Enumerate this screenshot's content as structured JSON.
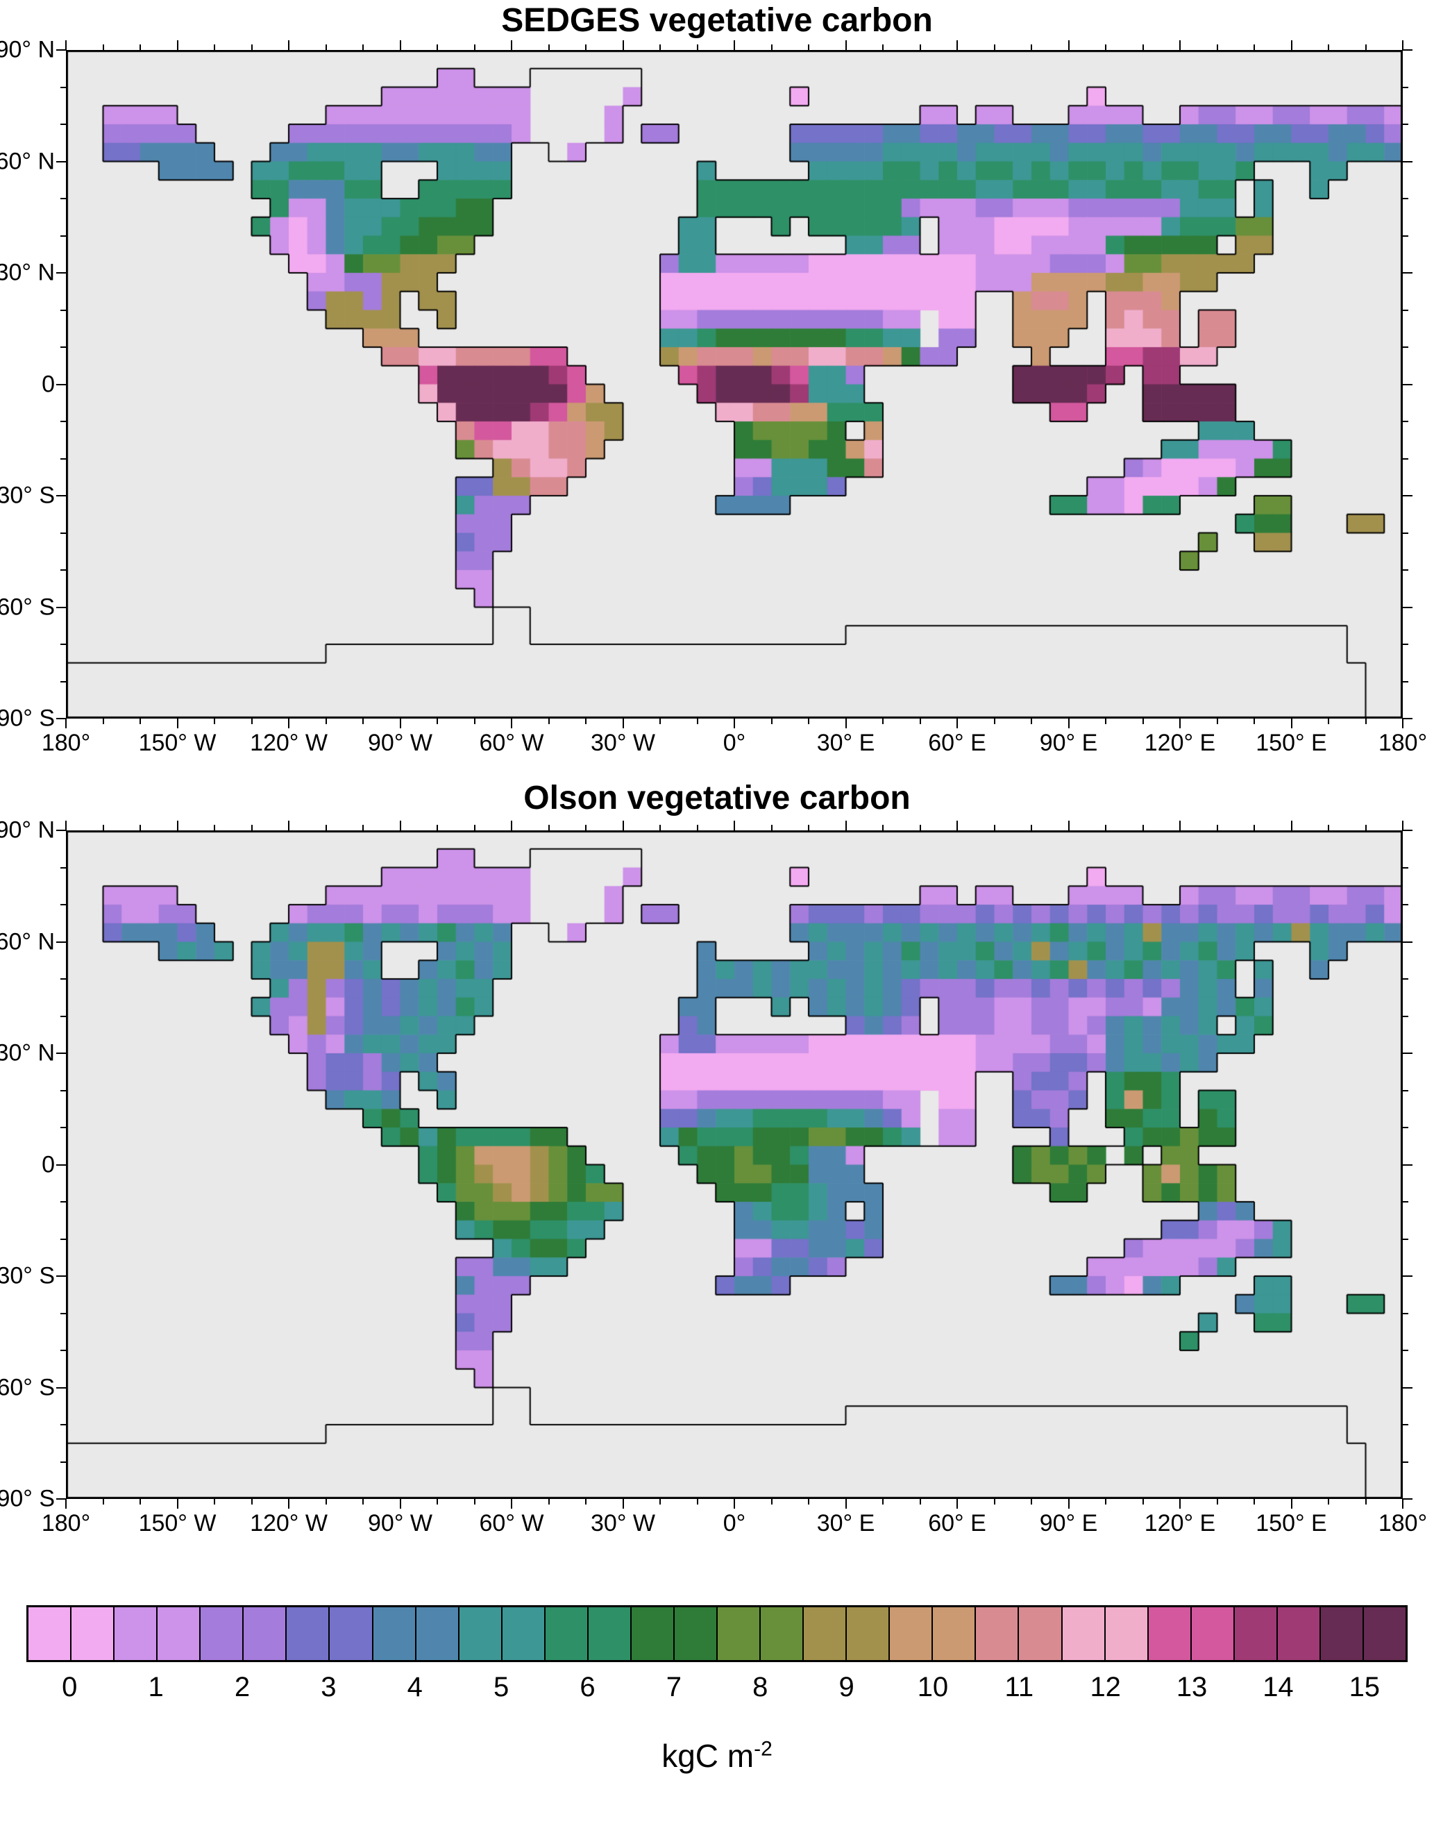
{
  "figure": {
    "background": "#ffffff",
    "panels": [
      {
        "title": "SEDGES vegetative carbon"
      },
      {
        "title": "Olson vegetative carbon"
      }
    ],
    "axes": {
      "lon_tick_labels": [
        "180°",
        "150° W",
        "120° W",
        "90° W",
        "60° W",
        "30° W",
        "0°",
        "30° E",
        "60° E",
        "90° E",
        "120° E",
        "150° E",
        "180°"
      ],
      "lat_tick_labels": [
        "90° N",
        "60° N",
        "30° N",
        "0",
        "30° S",
        "60° S",
        "90° S"
      ]
    },
    "colorbar": {
      "tick_labels": [
        "0",
        "1",
        "2",
        "3",
        "4",
        "5",
        "6",
        "7",
        "8",
        "9",
        "10",
        "11",
        "12",
        "13",
        "14",
        "15"
      ],
      "unit_base": "kgC m",
      "unit_exponent": "-2"
    }
  },
  "chart_data": {
    "type": "heatmap",
    "title_top": "SEDGES vegetative carbon",
    "title_bottom": "Olson vegetative carbon",
    "units": "kgC m-2",
    "value_range": [
      0,
      15
    ],
    "lon_range": [
      -180,
      180
    ],
    "lat_range": [
      -90,
      90
    ],
    "projection": "equirectangular",
    "grid_encoding": "36 row-strings of 72 cells (5 deg x 5 deg). Chars '0'-'9' and 'A'-'F' = vegetative carbon 0-15 kgC m-2; '.' = ocean/no data; 'x' = ice/outline-only land (Greenland interior, Antarctica)",
    "ocean_color": "#e9e9e9",
    "coast_color": "#000000",
    "palette": [
      "#f2aaf0",
      "#cd92e9",
      "#a47cdb",
      "#7472c9",
      "#5086ad",
      "#3d9795",
      "#2e9067",
      "#2e7c38",
      "#68903a",
      "#a2914d",
      "#cb9a72",
      "#d98b92",
      "#f0aecb",
      "#d4589d",
      "#9f3a75",
      "#672c53"
    ],
    "series": [
      {
        "name": "SEDGES vegetative carbon",
        "rows": [
          "........................................................................",
          "....................11...xxxxxx........................................",
          ".................11111111xxxxx1........0...............0................",
          "..1111........11111111111xxxx1................11.11...1111..122112211221",
          "..22222.....2222222222221xxxx1.22......333334433443344334433443344334432",
          "..334444...4455554455544..x1...........444445555455554555545555455554554",
          ".....4444.5566655...5555..........5.....555566565665656656566556...55...",
          "..........6644466..66666..........66666666666666655666556665566.5..5....",
          "...........611455566677...........66666666666211122111222222555.5.......",
          "..........6101455667777..........55...6.666665.111000011111566688.......",
          "...........10145667788...........55.......5522.111001111677777.99.......",
          "............001788999...........25511111000000000111122218899999........",
          ".............1122999............00000000000000000111AAAA99AA99..........",
          ".............29929.99...........00000000000000000..ABBA.BBBA............",
          "..............9999..9...........11222222222211 00..AAAA.BCBB.BB..........",
          "................AAA.............55677777776655 22..AAA..CCCB.BB..........",
          ".................BBCCBBBBDD.....9ABBBABBCCBBA722....A...DDEECC..........",
          "...................DFFFFFFED.....DEFFFED552........FFFFFE.EE............",
          "...................CFFFFFFFDA.....EFFFFE555........FFFFE..FFFFF.........",
          "....................CFFFFEDA99.....CCBBAA666.........DD...FFFFF.........",
          ".....................BDDCCBBA9......788887.A.................555........",
          ".....................8BCCCBBA.......778877AC...............5511116......",
          ".......................9BCCB........1155577B.............210000177......",
          ".....................3399BB.........235553.............11000017.........",
          ".....................5222..........4444..............6611066....88.",
          ".....................222.......................................677...99.",
          ".....................322.....................................8..99..",
          ".....................22.....................................8...",
          ".....................11.................................................",
          "......................1.................................................",
          ".......................xx...............................................",
          ".......................xx.................xxxxxxxxxxxxxxxxxxxxxxxxxxx...",
          "..............xxxxxxxxxxxxxxxxxxxxxxxxxxxxxxxxxxxxxxxxxxxxxxxxxxxxxxx.",
          "xxxxxxxxxxxxxxxxxxxxxxxxxxxxxxxxxxxxxxxxxxxxxxxxxxxxxxxxxxxxxxxxxxxxxx",
          "xxxxxxxxxxxxxxxxxxxxxxxxxxxxxxxxxxxxxxxxxxxxxxxxxxxxxxxxxxxxxxxxxxxxxx",
          "xxxxxxxxxxxxxxxxxxxxxxxxxxxxxxxxxxxxxxxxxxxxxxxxxxxxxxxxxxxxxxxxxxxxxx"
        ]
      },
      {
        "name": "Olson vegetative carbon",
        "rows": [
          "........................................................................",
          "....................11...xxxxxx........................................",
          ".................11111111xxxxx1........0...............0................",
          "..1111........11111111111xxxx1................11.11...1111..122112211221",
          "..21122.....1222122122211xxxx1.22......233323322232323232323232232232231",
          "..344434...5455645456454..x1...........454445454545456454594454545954454",
          ".....4545.5459954...4545..........4.....454546455645945645645645...54...",
          "..........5449945..45645..........45454554454545456456945645456.5..4....",
          "...........529234345455...........44454545454322232232323232454.4.......",
          "..........5229134345465..........44...5.454543.222112211221445465.......",
          "...........21923445455...........34.......3432.222112212454545.56.......",
          "............121455455...........13311111000000000111122145455455........",
          ".............2332454............000000000000000001122332455454..........",
          ".............23323.54...........00000000000000000..2332.6776............",
          "..............4554..5...........11222222222211 00..3223.6A76.66..........",
          "................676.............33455666655431 11..332..7766.76..........",
          ".................6757666677.....57666777887765 11....3...677877..........",
          "...................678AAA987.....6778776441........78787 7.88............",
          "...................6789AA9876.....778877444........78878..8A878.........",
          "....................6889A98788.....777665444.........77...87878.........",
          ".....................788877665......456654.4.................434........",
          ".....................56776655.......44554434...............3321125......",
          ".......................56776........11334453.............211111245......",
          ".....................224455.........234432.............11111125.........",
          ".....................4222..........3443..............4421045....55.",
          ".....................222.......................................455...66.",
          ".....................322.....................................5..66..",
          ".....................22.....................................6...",
          ".....................11.................................................",
          "......................1.................................................",
          ".......................xx...............................................",
          ".......................xx.................xxxxxxxxxxxxxxxxxxxxxxxxxxx...",
          "..............xxxxxxxxxxxxxxxxxxxxxxxxxxxxxxxxxxxxxxxxxxxxxxxxxxxxxxx.",
          "xxxxxxxxxxxxxxxxxxxxxxxxxxxxxxxxxxxxxxxxxxxxxxxxxxxxxxxxxxxxxxxxxxxxxx",
          "xxxxxxxxxxxxxxxxxxxxxxxxxxxxxxxxxxxxxxxxxxxxxxxxxxxxxxxxxxxxxxxxxxxxxx",
          "xxxxxxxxxxxxxxxxxxxxxxxxxxxxxxxxxxxxxxxxxxxxxxxxxxxxxxxxxxxxxxxxxxxxxx"
        ]
      }
    ]
  }
}
